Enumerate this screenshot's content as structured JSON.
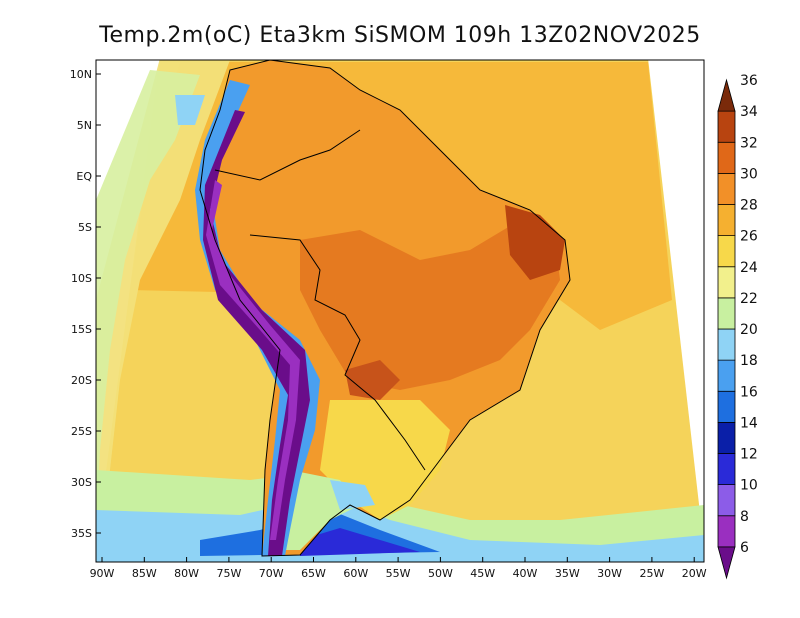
{
  "title": "Temp.2m(oC) Eta3km SiSMOM 109h 13Z02NOV2025",
  "variable": "Temperature at 2m",
  "units": "oC",
  "lat_ticks": [
    "10N",
    "5N",
    "EQ",
    "5S",
    "10S",
    "15S",
    "20S",
    "25S",
    "30S",
    "35S"
  ],
  "lon_ticks": [
    "90W",
    "85W",
    "80W",
    "75W",
    "70W",
    "65W",
    "60W",
    "55W",
    "50W",
    "45W",
    "40W",
    "35W",
    "30W",
    "25W",
    "20W"
  ],
  "colorbar": {
    "levels": [
      "6",
      "8",
      "10",
      "12",
      "14",
      "16",
      "18",
      "20",
      "22",
      "24",
      "26",
      "28",
      "30",
      "32",
      "34",
      "36"
    ],
    "colors": [
      "#6a0d8a",
      "#9a2fc0",
      "#8c5ce8",
      "#2a2ad8",
      "#0a1fa8",
      "#1e6fe0",
      "#4aa0f0",
      "#8fd3f5",
      "#c8f0a0",
      "#f2f08c",
      "#f7d84a",
      "#f5b030",
      "#f29028",
      "#e06818",
      "#b84410",
      "#7a2a0a"
    ]
  },
  "colors": {
    "ocean_warm": "#f7c850",
    "ocean_mid": "#f2e070",
    "land_hot": "#ef8a25",
    "land_very_hot": "#c7531a",
    "andes_cold": "#6a0d8a",
    "frame": "#000000"
  }
}
